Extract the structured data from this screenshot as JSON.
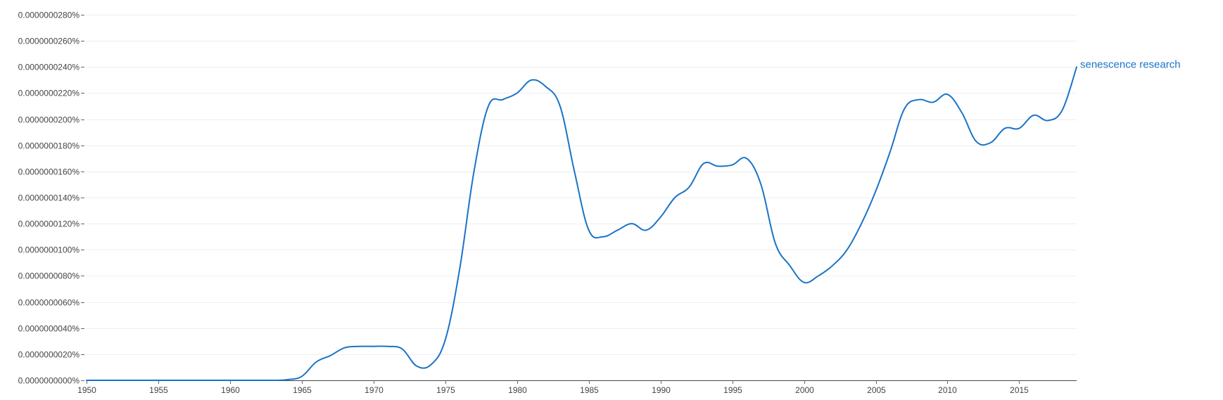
{
  "chart_data": {
    "type": "line",
    "title": "",
    "xlabel": "",
    "ylabel": "",
    "xlim": [
      1950,
      2019
    ],
    "ylim": [
      0,
      2.8e-08
    ],
    "grid": true,
    "x_ticks": [
      {
        "value": 1950,
        "label": "1950"
      },
      {
        "value": 1955,
        "label": "1955"
      },
      {
        "value": 1960,
        "label": "1960"
      },
      {
        "value": 1965,
        "label": "1965"
      },
      {
        "value": 1970,
        "label": "1970"
      },
      {
        "value": 1975,
        "label": "1975"
      },
      {
        "value": 1980,
        "label": "1980"
      },
      {
        "value": 1985,
        "label": "1985"
      },
      {
        "value": 1990,
        "label": "1990"
      },
      {
        "value": 1995,
        "label": "1995"
      },
      {
        "value": 2000,
        "label": "2000"
      },
      {
        "value": 2005,
        "label": "2005"
      },
      {
        "value": 2010,
        "label": "2010"
      },
      {
        "value": 2015,
        "label": "2015"
      }
    ],
    "y_ticks": [
      {
        "value": 0.0,
        "label": "0.0000000000%"
      },
      {
        "value": 2e-09,
        "label": "0.0000000020%"
      },
      {
        "value": 4e-09,
        "label": "0.0000000040%"
      },
      {
        "value": 6e-09,
        "label": "0.0000000060%"
      },
      {
        "value": 8e-09,
        "label": "0.0000000080%"
      },
      {
        "value": 1e-08,
        "label": "0.0000000100%"
      },
      {
        "value": 1.2e-08,
        "label": "0.0000000120%"
      },
      {
        "value": 1.4e-08,
        "label": "0.0000000140%"
      },
      {
        "value": 1.6e-08,
        "label": "0.0000000160%"
      },
      {
        "value": 1.8e-08,
        "label": "0.0000000180%"
      },
      {
        "value": 2e-08,
        "label": "0.0000000200%"
      },
      {
        "value": 2.2e-08,
        "label": "0.0000000220%"
      },
      {
        "value": 2.4e-08,
        "label": "0.0000000240%"
      },
      {
        "value": 2.6e-08,
        "label": "0.0000000260%"
      },
      {
        "value": 2.8e-08,
        "label": "0.0000000280%"
      }
    ],
    "series": [
      {
        "name": "senescence research",
        "color": "#1a73c8",
        "x": [
          1950,
          1955,
          1960,
          1963,
          1964,
          1965,
          1966,
          1967,
          1968,
          1969,
          1970,
          1971,
          1972,
          1973,
          1974,
          1975,
          1976,
          1977,
          1978,
          1979,
          1980,
          1981,
          1982,
          1983,
          1984,
          1985,
          1986,
          1987,
          1988,
          1989,
          1990,
          1991,
          1992,
          1993,
          1994,
          1995,
          1996,
          1997,
          1998,
          1999,
          2000,
          2001,
          2002,
          2003,
          2004,
          2005,
          2006,
          2007,
          2008,
          2009,
          2010,
          2011,
          2012,
          2013,
          2014,
          2015,
          2016,
          2017,
          2018,
          2019
        ],
        "y": [
          0,
          0,
          0,
          0,
          5e-11,
          3e-10,
          1.4e-09,
          1.9e-09,
          2.5e-09,
          2.6e-09,
          2.6e-09,
          2.6e-09,
          2.4e-09,
          1.1e-09,
          1.2e-09,
          3.1e-09,
          8.5e-09,
          1.6e-08,
          2.1e-08,
          2.15e-08,
          2.2e-08,
          2.3e-08,
          2.25e-08,
          2.1e-08,
          1.6e-08,
          1.15e-08,
          1.1e-08,
          1.15e-08,
          1.2e-08,
          1.15e-08,
          1.25e-08,
          1.4e-08,
          1.48e-08,
          1.66e-08,
          1.64e-08,
          1.65e-08,
          1.7e-08,
          1.5e-08,
          1.05e-08,
          8.8e-09,
          7.5e-09,
          8e-09,
          8.8e-09,
          1e-08,
          1.2e-08,
          1.45e-08,
          1.75e-08,
          2.08e-08,
          2.15e-08,
          2.13e-08,
          2.19e-08,
          2.05e-08,
          1.83e-08,
          1.82e-08,
          1.93e-08,
          1.93e-08,
          2.03e-08,
          1.99e-08,
          2.07e-08,
          2.4e-08
        ]
      }
    ]
  }
}
